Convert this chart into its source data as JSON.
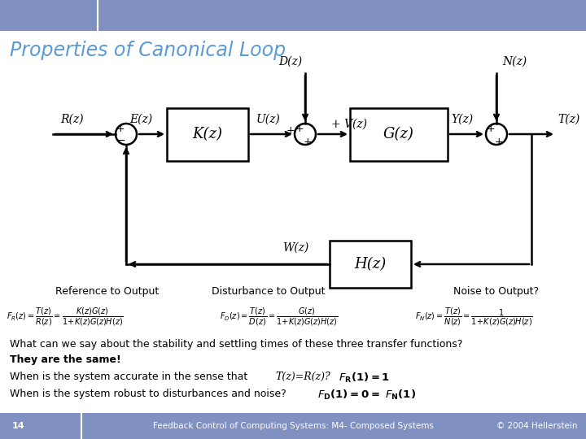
{
  "title": "Properties of Canonical Loop",
  "title_color": "#5B9BD5",
  "bg_color": "#FFFFFF",
  "header_color": "#8090C0",
  "footer_color": "#8090C0",
  "footer_text": "Feedback Control of Computing Systems: M4- Composed Systems",
  "footer_right": "© 2004 Hellerstein",
  "footer_page": "14",
  "ref_label": "Reference to Output",
  "dist_label": "Disturbance to Output",
  "noise_label": "Noise to Output?",
  "text1": "What can we say about the stability and settling times of these three transfer functions?",
  "text2": "They are the same!",
  "text3": "When is the system accurate in the sense that ",
  "text3b": "T(z)=R(z)?",
  "text4": "When is the system robust to disturbances and noise?"
}
